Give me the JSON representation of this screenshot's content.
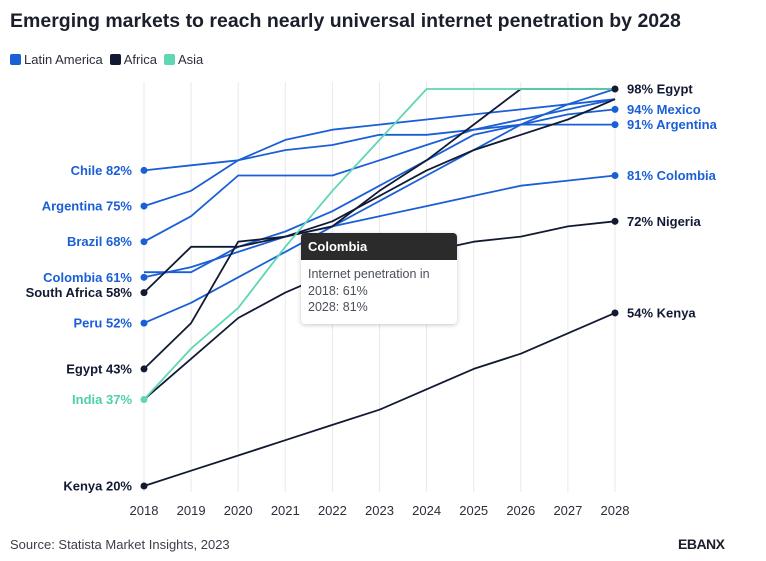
{
  "title": "Emerging markets to reach nearly universal internet penetration by 2028",
  "legend": [
    {
      "label": "Latin America",
      "color": "#1a5fd6"
    },
    {
      "label": "Africa",
      "color": "#121a33"
    },
    {
      "label": "Asia",
      "color": "#5fd6b4"
    }
  ],
  "tooltip": {
    "country": "Colombia",
    "heading": "Internet penetration in",
    "line1": "2018: 61%",
    "line2": "2028: 81%"
  },
  "source": "Source: Statista Market Insights, 2023",
  "logo": "EBANX",
  "chart_data": {
    "type": "line",
    "title": "Emerging markets to reach nearly universal internet penetration by 2028",
    "xlabel": "",
    "ylabel": "",
    "x": [
      2018,
      2019,
      2020,
      2021,
      2022,
      2023,
      2024,
      2025,
      2026,
      2027,
      2028
    ],
    "ylim": [
      20,
      98
    ],
    "grid": "vertical",
    "series": [
      {
        "name": "Chile",
        "region": "Latin America",
        "values": [
          82,
          83,
          84,
          88,
          90,
          91,
          92,
          93,
          94,
          95,
          96
        ]
      },
      {
        "name": "Argentina",
        "region": "Latin America",
        "values": [
          75,
          78,
          84,
          86,
          87,
          89,
          89,
          90,
          91,
          91,
          91
        ]
      },
      {
        "name": "Brazil",
        "region": "Latin America",
        "values": [
          68,
          73,
          81,
          81,
          81,
          84,
          87,
          90,
          92,
          94,
          96
        ]
      },
      {
        "name": "Mexico",
        "region": "Latin America",
        "values": [
          62,
          62,
          67,
          70,
          74,
          79,
          84,
          89,
          91,
          93,
          94
        ]
      },
      {
        "name": "Colombia",
        "region": "Latin America",
        "values": [
          61,
          63,
          66,
          69,
          71,
          73,
          75,
          77,
          79,
          80,
          81
        ]
      },
      {
        "name": "Peru",
        "region": "Latin America",
        "values": [
          52,
          56,
          61,
          66,
          71,
          76,
          81,
          86,
          91,
          95,
          98
        ]
      },
      {
        "name": "South Africa",
        "region": "Africa",
        "values": [
          58,
          67,
          67,
          69,
          72,
          77,
          82,
          86,
          89,
          92,
          96
        ]
      },
      {
        "name": "Egypt",
        "region": "Africa",
        "values": [
          43,
          52,
          68,
          69,
          71,
          78,
          84,
          91,
          98,
          98,
          98
        ]
      },
      {
        "name": "Nigeria",
        "region": "Africa",
        "values": [
          37,
          45,
          53,
          58,
          62,
          64,
          66,
          68,
          69,
          71,
          72
        ]
      },
      {
        "name": "Kenya",
        "region": "Africa",
        "values": [
          20,
          23,
          26,
          29,
          32,
          35,
          39,
          43,
          46,
          50,
          54
        ]
      },
      {
        "name": "India",
        "region": "Asia",
        "values": [
          37,
          47,
          55,
          67,
          78,
          88,
          98,
          98,
          98,
          98,
          98
        ]
      }
    ],
    "start_labels": [
      {
        "text": "Chile 82%",
        "value": 82,
        "region": "Latin America"
      },
      {
        "text": "Argentina 75%",
        "value": 75,
        "region": "Latin America"
      },
      {
        "text": "Brazil 68%",
        "value": 68,
        "region": "Latin America"
      },
      {
        "text": "Colombia 61%",
        "value": 61,
        "region": "Latin America"
      },
      {
        "text": "South Africa 58%",
        "value": 58,
        "region": "Africa"
      },
      {
        "text": "Peru 52%",
        "value": 52,
        "region": "Latin America"
      },
      {
        "text": "Egypt 43%",
        "value": 43,
        "region": "Africa"
      },
      {
        "text": "India 37%",
        "value": 37,
        "region": "Asia"
      },
      {
        "text": "Kenya 20%",
        "value": 20,
        "region": "Africa"
      }
    ],
    "end_labels": [
      {
        "text": "98% Egypt",
        "value": 98,
        "region": "Africa"
      },
      {
        "text": "94% Mexico",
        "value": 94,
        "region": "Latin America"
      },
      {
        "text": "91% Argentina",
        "value": 91,
        "region": "Latin America"
      },
      {
        "text": "81% Colombia",
        "value": 81,
        "region": "Latin America"
      },
      {
        "text": "72% Nigeria",
        "value": 72,
        "region": "Africa"
      },
      {
        "text": "54% Kenya",
        "value": 54,
        "region": "Africa"
      }
    ]
  }
}
